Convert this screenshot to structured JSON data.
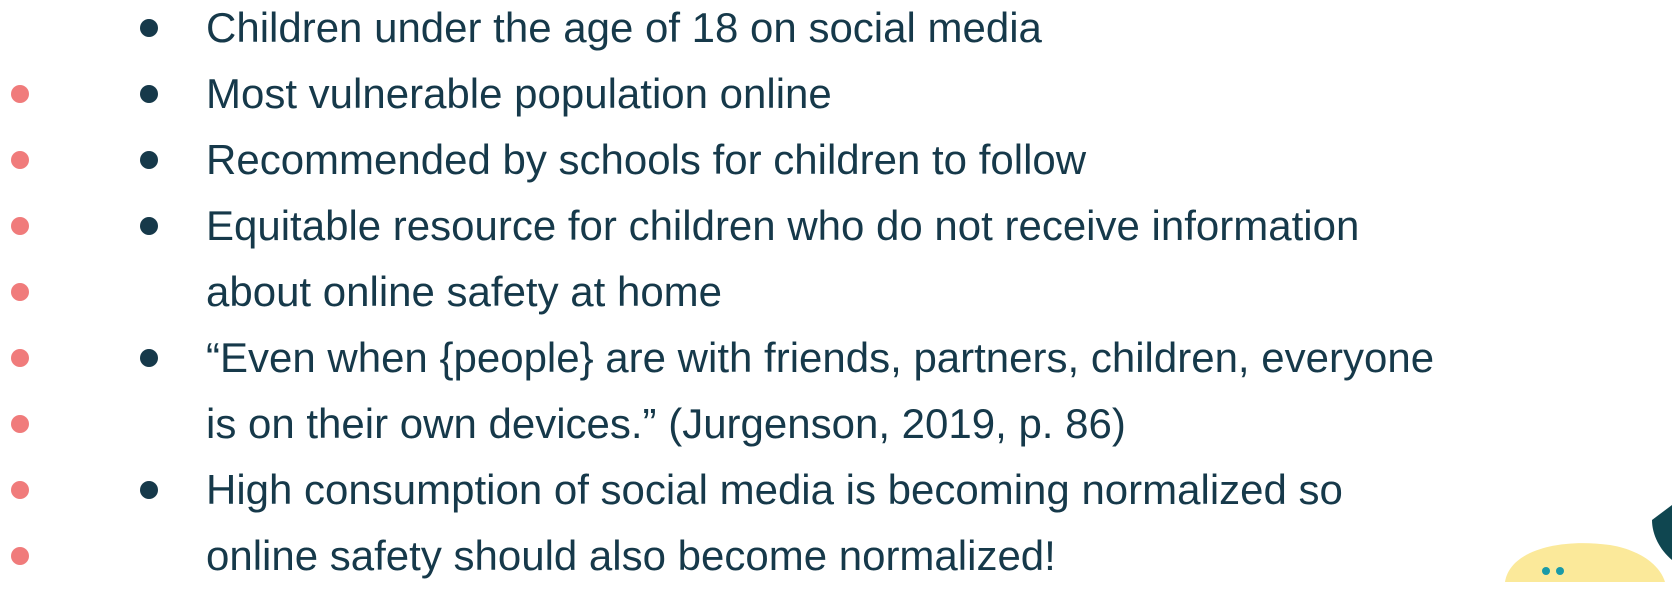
{
  "bullets": [
    [
      "Children under the age of 18 on social media"
    ],
    [
      "Most vulnerable population online"
    ],
    [
      "Recommended by schools for children to follow"
    ],
    [
      "Equitable resource for children who do not receive information",
      "about online safety at home"
    ],
    [
      "“Even when {people} are with friends, partners, children, everyone",
      "is on their own devices.” (Jurgenson, 2019, p. 86)"
    ],
    [
      "High consumption of social media is becoming normalized so",
      "online safety should also become normalized!"
    ]
  ]
}
